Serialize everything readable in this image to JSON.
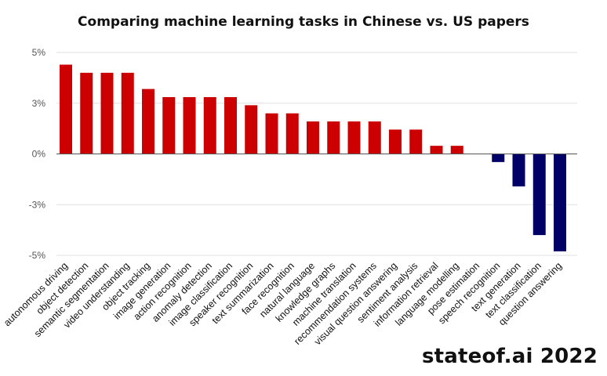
{
  "title": "Comparing machine learning tasks in Chinese vs. US papers",
  "footer": "stateof.ai 2022",
  "colors": {
    "positive": "#cc0000",
    "negative": "#000066",
    "grid": "#e0e0e0",
    "zero_line": "#555555"
  },
  "chart_data": {
    "type": "bar",
    "title": "Comparing machine learning tasks in Chinese vs. US papers",
    "xlabel": "",
    "ylabel": "",
    "ylim": [
      -5,
      5
    ],
    "yticks": [
      5,
      2.5,
      0,
      -2.5,
      -5
    ],
    "ytick_labels": [
      "5%",
      "3%",
      "0%",
      "-3%",
      "-5%"
    ],
    "grid": true,
    "legend": "none",
    "categories": [
      "autonomous driving",
      "object detection",
      "semantic segmentation",
      "video understanding",
      "object tracking",
      "image generation",
      "action recognition",
      "anomaly detection",
      "image classification",
      "speaker recognition",
      "text summarization",
      "face recognition",
      "natural language",
      "knowledge graphs",
      "machine translation",
      "recommendation systems",
      "visual question answering",
      "sentiment analysis",
      "information retrieval",
      "language modelling",
      "pose estimation",
      "speech recognition",
      "text generation",
      "text classification",
      "question answering"
    ],
    "values": [
      4.4,
      4.0,
      4.0,
      4.0,
      3.2,
      2.8,
      2.8,
      2.8,
      2.8,
      2.4,
      2.0,
      2.0,
      1.6,
      1.6,
      1.6,
      1.6,
      1.2,
      1.2,
      0.4,
      0.4,
      0.0,
      -0.4,
      -1.6,
      -4.0,
      -4.8
    ]
  }
}
